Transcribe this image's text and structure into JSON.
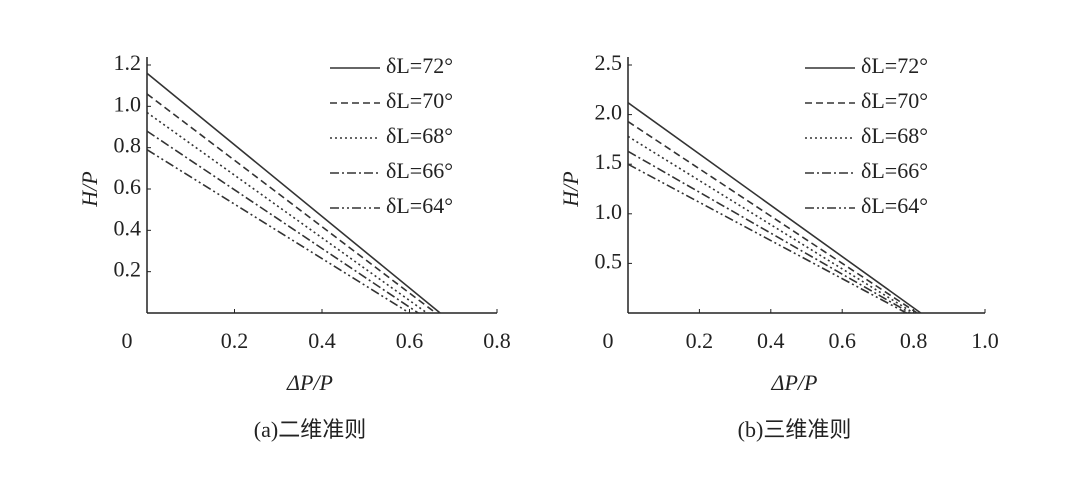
{
  "chart_data": [
    {
      "type": "line",
      "title": "(a)二维准则",
      "xlabel": "ΔP/P",
      "ylabel": "H/P",
      "xlim": [
        0,
        0.8
      ],
      "xticks": [
        0,
        0.2,
        0.4,
        0.6,
        0.8
      ],
      "ylim": [
        0,
        1.2
      ],
      "yticks": [
        0.2,
        0.4,
        0.6,
        0.8,
        {
          "value": 1,
          "label": "1.0"
        },
        1.2
      ],
      "grid": false,
      "legend": "upper right",
      "series": [
        {
          "name": "δL=72°",
          "color": "#333333",
          "style": "solid",
          "x": [
            0,
            0.67
          ],
          "values": [
            1.16,
            0
          ]
        },
        {
          "name": "δL=70°",
          "color": "#333333",
          "style": "dashed",
          "x": [
            0,
            0.66
          ],
          "values": [
            1.06,
            0
          ]
        },
        {
          "name": "δL=68°",
          "color": "#333333",
          "style": "dotted",
          "x": [
            0,
            0.64
          ],
          "values": [
            0.97,
            0
          ]
        },
        {
          "name": "δL=66°",
          "color": "#333333",
          "style": "dashdot",
          "x": [
            0,
            0.62
          ],
          "values": [
            0.88,
            0
          ]
        },
        {
          "name": "δL=64°",
          "color": "#333333",
          "style": "dashdotdot",
          "x": [
            0,
            0.6
          ],
          "values": [
            0.79,
            0
          ]
        }
      ]
    },
    {
      "type": "line",
      "title": "(b)三维准则",
      "xlabel": "ΔP/P",
      "ylabel": "H/P",
      "xlim": [
        0,
        1
      ],
      "xticks": [
        0,
        0.2,
        0.4,
        0.6,
        0.8,
        {
          "value": 1,
          "label": "1.0"
        }
      ],
      "ylim": [
        0,
        2.5
      ],
      "yticks": [
        0.5,
        {
          "value": 1,
          "label": "1.0"
        },
        1.5,
        {
          "value": 2,
          "label": "2.0"
        },
        2.5
      ],
      "grid": false,
      "legend": "upper right",
      "series": [
        {
          "name": "δL=72°",
          "color": "#333333",
          "style": "solid",
          "x": [
            0,
            0.82
          ],
          "values": [
            2.12,
            0
          ]
        },
        {
          "name": "δL=70°",
          "color": "#333333",
          "style": "dashed",
          "x": [
            0,
            0.81
          ],
          "values": [
            1.93,
            0
          ]
        },
        {
          "name": "δL=68°",
          "color": "#333333",
          "style": "dotted",
          "x": [
            0,
            0.8
          ],
          "values": [
            1.78,
            0
          ]
        },
        {
          "name": "δL=66°",
          "color": "#333333",
          "style": "dashdot",
          "x": [
            0,
            0.79
          ],
          "values": [
            1.63,
            0
          ]
        },
        {
          "name": "δL=64°",
          "color": "#333333",
          "style": "dashdotdot",
          "x": [
            0,
            0.78
          ],
          "values": [
            1.5,
            0
          ]
        }
      ]
    }
  ]
}
